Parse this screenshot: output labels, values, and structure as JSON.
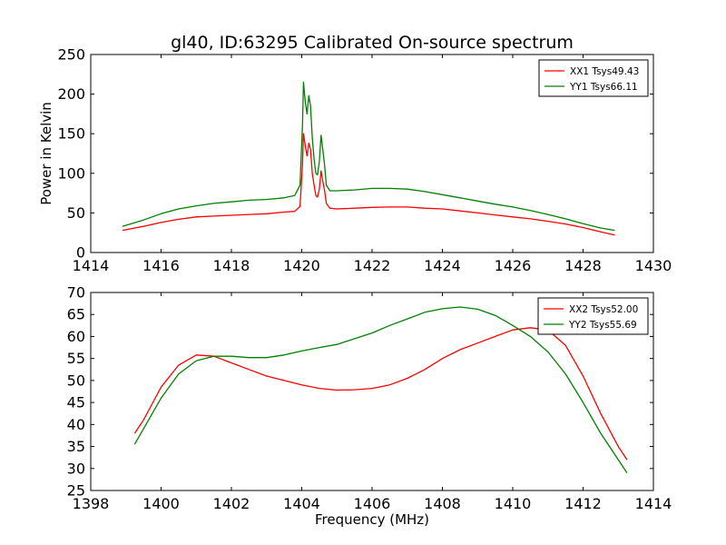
{
  "chart_data": [
    {
      "type": "line",
      "title": "gl40, ID:63295 Calibrated On-source spectrum",
      "xlabel": "",
      "ylabel": "Power in Kelvin",
      "xlim": [
        1414,
        1430
      ],
      "ylim": [
        0,
        250
      ],
      "xticks": [
        1414,
        1416,
        1418,
        1420,
        1422,
        1424,
        1426,
        1428,
        1430
      ],
      "yticks": [
        0,
        50,
        100,
        150,
        200,
        250
      ],
      "grid": false,
      "legend": "top-right",
      "series": [
        {
          "name": "XX1 Tsys49.43",
          "color": "#ff0000",
          "x": [
            1414.9,
            1415.5,
            1416.0,
            1416.5,
            1417.0,
            1417.5,
            1418.0,
            1418.5,
            1419.0,
            1419.5,
            1419.8,
            1419.95,
            1420.02,
            1420.05,
            1420.1,
            1420.15,
            1420.2,
            1420.25,
            1420.3,
            1420.35,
            1420.4,
            1420.45,
            1420.5,
            1420.55,
            1420.6,
            1420.65,
            1420.7,
            1420.8,
            1421.0,
            1421.5,
            1422.0,
            1422.5,
            1423.0,
            1423.5,
            1424.0,
            1424.5,
            1425.0,
            1425.5,
            1426.0,
            1426.5,
            1427.0,
            1427.5,
            1428.0,
            1428.5,
            1428.9
          ],
          "values": [
            28,
            33,
            38,
            42,
            45,
            46,
            47,
            48,
            49,
            51,
            52,
            58,
            110,
            150,
            135,
            122,
            138,
            130,
            100,
            85,
            72,
            70,
            80,
            103,
            90,
            78,
            62,
            56,
            55,
            56,
            57,
            57.5,
            57.5,
            56,
            55,
            52.5,
            50,
            47.5,
            45,
            42.5,
            39.5,
            36,
            31.5,
            26,
            22
          ]
        },
        {
          "name": "YY1 Tsys66.11",
          "color": "#008000",
          "x": [
            1414.9,
            1415.5,
            1416.0,
            1416.5,
            1417.0,
            1417.5,
            1418.0,
            1418.5,
            1419.0,
            1419.5,
            1419.8,
            1419.95,
            1420.02,
            1420.05,
            1420.1,
            1420.15,
            1420.2,
            1420.25,
            1420.3,
            1420.35,
            1420.4,
            1420.45,
            1420.5,
            1420.55,
            1420.6,
            1420.65,
            1420.7,
            1420.8,
            1421.0,
            1421.5,
            1422.0,
            1422.5,
            1423.0,
            1423.5,
            1424.0,
            1424.5,
            1425.0,
            1425.5,
            1426.0,
            1426.5,
            1427.0,
            1427.5,
            1428.0,
            1428.5,
            1428.9
          ],
          "values": [
            33,
            41,
            49,
            55,
            59,
            62,
            64,
            66,
            67,
            69,
            72,
            85,
            160,
            215,
            190,
            175,
            198,
            185,
            145,
            118,
            100,
            98,
            115,
            148,
            130,
            110,
            85,
            78,
            78,
            79,
            81,
            81,
            80,
            77,
            73,
            69,
            65,
            61,
            57.5,
            53,
            48,
            42.5,
            36.5,
            31,
            28
          ]
        }
      ]
    },
    {
      "type": "line",
      "title": "",
      "xlabel": "Frequency (MHz)",
      "ylabel": "",
      "xlim": [
        1398,
        1414
      ],
      "ylim": [
        25,
        70
      ],
      "xticks": [
        1398,
        1400,
        1402,
        1404,
        1406,
        1408,
        1410,
        1412,
        1414
      ],
      "yticks": [
        25,
        30,
        35,
        40,
        45,
        50,
        55,
        60,
        65,
        70
      ],
      "grid": false,
      "legend": "top-right",
      "series": [
        {
          "name": "XX2 Tsys52.00",
          "color": "#ff0000",
          "x": [
            1399.25,
            1399.5,
            1400.0,
            1400.5,
            1401.0,
            1401.5,
            1402.0,
            1402.5,
            1403.0,
            1403.5,
            1404.0,
            1404.5,
            1405.0,
            1405.5,
            1406.0,
            1406.5,
            1407.0,
            1407.5,
            1408.0,
            1408.5,
            1409.0,
            1409.5,
            1410.0,
            1410.5,
            1411.0,
            1411.5,
            1412.0,
            1412.5,
            1413.0,
            1413.25
          ],
          "values": [
            38,
            41,
            48.5,
            53.5,
            55.8,
            55.5,
            54,
            52.5,
            51,
            50,
            49,
            48.2,
            47.8,
            47.9,
            48.2,
            49,
            50.5,
            52.5,
            55,
            57,
            58.5,
            60,
            61.5,
            62,
            61.5,
            58,
            51,
            42.5,
            35,
            32
          ]
        },
        {
          "name": "YY2 Tsys55.69",
          "color": "#008000",
          "x": [
            1399.25,
            1399.5,
            1400.0,
            1400.5,
            1401.0,
            1401.5,
            1402.0,
            1402.5,
            1403.0,
            1403.5,
            1404.0,
            1404.5,
            1405.0,
            1405.5,
            1406.0,
            1406.5,
            1407.0,
            1407.5,
            1408.0,
            1408.5,
            1409.0,
            1409.5,
            1410.0,
            1410.5,
            1411.0,
            1411.5,
            1412.0,
            1412.5,
            1413.0,
            1413.25
          ],
          "values": [
            35.5,
            39,
            46,
            51.5,
            54.5,
            55.5,
            55.5,
            55.2,
            55.2,
            55.8,
            56.7,
            57.5,
            58.2,
            59.5,
            60.8,
            62.5,
            64,
            65.5,
            66.3,
            66.7,
            66.2,
            64.8,
            62.5,
            60,
            56.5,
            51.5,
            45,
            38,
            32,
            29
          ]
        }
      ]
    }
  ]
}
